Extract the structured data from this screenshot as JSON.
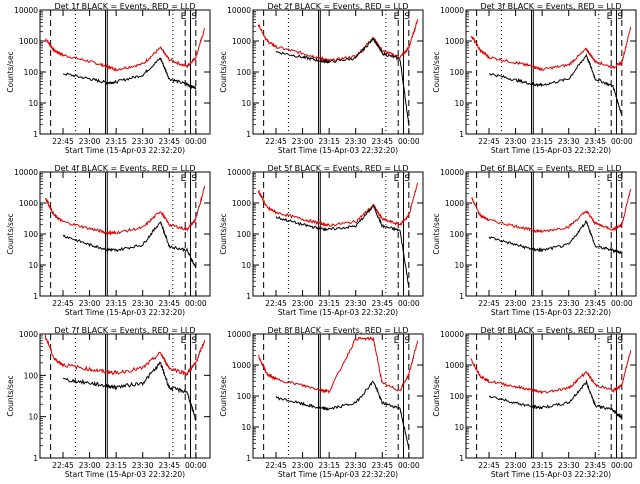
{
  "figure": {
    "xlabel": "Start Time (15-Apr-03 22:32:20)",
    "ylabel": "Counts/sec",
    "x_tick_labels": [
      "22:45",
      "23:00",
      "23:15",
      "23:30",
      "23:45",
      "00:00"
    ],
    "y_tick_labels": [
      "1",
      "10",
      "100",
      "1000",
      "10000"
    ],
    "event_markers": [
      "E",
      "S"
    ]
  },
  "colors": {
    "events": "#000000",
    "lld": "#e00000"
  },
  "chart_data": [
    {
      "type": "line",
      "title": "Det 1f BLACK = Events, RED = LLD",
      "xlabel": "Start Time (15-Apr-03 22:32:20)",
      "ylabel": "Counts/sec",
      "y_scale": "log",
      "ylim": [
        1,
        10000
      ],
      "x": [
        "22:35",
        "22:40",
        "22:45",
        "23:00",
        "23:10",
        "23:15",
        "23:30",
        "23:40",
        "23:45",
        "23:55",
        "00:00",
        "00:05"
      ],
      "series": [
        {
          "name": "BLACK = Events",
          "color": "#000000",
          "start_index": 2,
          "end_index": 10,
          "values": [
            null,
            null,
            90,
            60,
            45,
            48,
            80,
            280,
            60,
            40,
            30,
            null
          ]
        },
        {
          "name": "RED = LLD",
          "color": "#e00000",
          "values": [
            1200,
            500,
            350,
            220,
            150,
            120,
            180,
            600,
            250,
            150,
            300,
            2500
          ]
        }
      ]
    },
    {
      "type": "line",
      "title": "Det 2f BLACK = Events, RED = LLD",
      "xlabel": "Start Time (15-Apr-03 22:32:20)",
      "ylabel": "Counts/sec",
      "y_scale": "log",
      "ylim": [
        1,
        10000
      ],
      "x": [
        "22:35",
        "22:40",
        "22:45",
        "23:00",
        "23:10",
        "23:15",
        "23:30",
        "23:40",
        "23:45",
        "23:55",
        "00:00",
        "00:05"
      ],
      "series": [
        {
          "name": "BLACK = Events",
          "color": "#000000",
          "start_index": 2,
          "end_index": 10,
          "values": [
            null,
            null,
            450,
            300,
            230,
            210,
            280,
            1200,
            400,
            260,
            2,
            null
          ]
        },
        {
          "name": "RED = LLD",
          "color": "#e00000",
          "values": [
            3500,
            1000,
            650,
            400,
            280,
            230,
            320,
            1300,
            480,
            300,
            600,
            5000
          ]
        }
      ]
    },
    {
      "type": "line",
      "title": "Det 3f BLACK = Events, RED = LLD",
      "xlabel": "Start Time (15-Apr-03 22:32:20)",
      "ylabel": "Counts/sec",
      "y_scale": "log",
      "ylim": [
        1,
        10000
      ],
      "x": [
        "22:35",
        "22:40",
        "22:45",
        "23:00",
        "23:10",
        "23:15",
        "23:30",
        "23:40",
        "23:45",
        "23:55",
        "00:00",
        "00:05"
      ],
      "series": [
        {
          "name": "BLACK = Events",
          "color": "#000000",
          "start_index": 2,
          "end_index": 10,
          "values": [
            null,
            null,
            90,
            55,
            40,
            38,
            60,
            350,
            60,
            35,
            4,
            null
          ]
        },
        {
          "name": "RED = LLD",
          "color": "#e00000",
          "values": [
            1500,
            500,
            300,
            200,
            150,
            120,
            170,
            550,
            220,
            140,
            200,
            2800
          ]
        }
      ]
    },
    {
      "type": "line",
      "title": "Det 4f BLACK = Events, RED = LLD",
      "xlabel": "Start Time (15-Apr-03 22:32:20)",
      "ylabel": "Counts/sec",
      "y_scale": "log",
      "ylim": [
        1,
        10000
      ],
      "x": [
        "22:35",
        "22:40",
        "22:45",
        "23:00",
        "23:10",
        "23:15",
        "23:30",
        "23:40",
        "23:45",
        "23:55",
        "00:00",
        "00:05"
      ],
      "series": [
        {
          "name": "BLACK = Events",
          "color": "#000000",
          "start_index": 2,
          "end_index": 10,
          "values": [
            null,
            null,
            90,
            45,
            32,
            30,
            45,
            250,
            40,
            30,
            8,
            null
          ]
        },
        {
          "name": "RED = LLD",
          "color": "#e00000",
          "values": [
            1500,
            400,
            250,
            150,
            110,
            110,
            160,
            550,
            200,
            140,
            300,
            3500
          ]
        }
      ]
    },
    {
      "type": "line",
      "title": "Det 5f BLACK = Events, RED = LLD",
      "xlabel": "Start Time (15-Apr-03 22:32:20)",
      "ylabel": "Counts/sec",
      "y_scale": "log",
      "ylim": [
        1,
        10000
      ],
      "x": [
        "22:35",
        "22:40",
        "22:45",
        "23:00",
        "23:10",
        "23:15",
        "23:30",
        "23:40",
        "23:45",
        "23:55",
        "00:00",
        "00:05"
      ],
      "series": [
        {
          "name": "BLACK = Events",
          "color": "#000000",
          "start_index": 2,
          "end_index": 10,
          "values": [
            null,
            null,
            350,
            200,
            150,
            140,
            180,
            800,
            180,
            130,
            2,
            null
          ]
        },
        {
          "name": "RED = LLD",
          "color": "#e00000",
          "values": [
            2500,
            700,
            500,
            300,
            220,
            190,
            250,
            850,
            300,
            200,
            400,
            4500
          ]
        }
      ]
    },
    {
      "type": "line",
      "title": "Det 6f BLACK = Events, RED = LLD",
      "xlabel": "Start Time (15-Apr-03 22:32:20)",
      "ylabel": "Counts/sec",
      "y_scale": "log",
      "ylim": [
        1,
        10000
      ],
      "x": [
        "22:35",
        "22:40",
        "22:45",
        "23:00",
        "23:10",
        "23:15",
        "23:30",
        "23:40",
        "23:45",
        "23:55",
        "00:00",
        "00:05"
      ],
      "series": [
        {
          "name": "BLACK = Events",
          "color": "#000000",
          "start_index": 2,
          "end_index": 10,
          "values": [
            null,
            null,
            80,
            45,
            32,
            30,
            45,
            260,
            40,
            30,
            25,
            null
          ]
        },
        {
          "name": "RED = LLD",
          "color": "#e00000",
          "values": [
            1500,
            400,
            280,
            180,
            130,
            120,
            170,
            550,
            220,
            140,
            200,
            2800
          ]
        }
      ]
    },
    {
      "type": "line",
      "title": "Det 7f BLACK = Events, RED = LLD",
      "xlabel": "Start Time (15-Apr-03 22:32:20)",
      "ylabel": "Counts/sec",
      "y_scale": "log",
      "ylim": [
        1,
        1000
      ],
      "x": [
        "22:35",
        "22:40",
        "22:45",
        "23:00",
        "23:10",
        "23:15",
        "23:30",
        "23:40",
        "23:45",
        "23:55",
        "00:00",
        "00:05"
      ],
      "series": [
        {
          "name": "BLACK = Events",
          "color": "#000000",
          "start_index": 2,
          "end_index": 10,
          "values": [
            null,
            null,
            80,
            65,
            55,
            52,
            65,
            200,
            50,
            40,
            8,
            null
          ]
        },
        {
          "name": "RED = LLD",
          "color": "#e00000",
          "values": [
            900,
            250,
            180,
            140,
            120,
            115,
            150,
            350,
            150,
            110,
            200,
            700
          ]
        }
      ]
    },
    {
      "type": "line",
      "title": "Det 8f BLACK = Events, RED = LLD",
      "xlabel": "Start Time (15-Apr-03 22:32:20)",
      "ylabel": "Counts/sec",
      "y_scale": "log",
      "ylim": [
        1,
        10000
      ],
      "x": [
        "22:35",
        "22:40",
        "22:45",
        "23:00",
        "23:10",
        "23:15",
        "23:30",
        "23:40",
        "23:45",
        "23:55",
        "00:00",
        "00:05"
      ],
      "series": [
        {
          "name": "BLACK = Events",
          "color": "#000000",
          "start_index": 2,
          "end_index": 10,
          "values": [
            null,
            null,
            90,
            55,
            40,
            38,
            60,
            300,
            60,
            40,
            2,
            null
          ]
        },
        {
          "name": "RED = LLD",
          "color": "#e00000",
          "values": [
            2000,
            500,
            350,
            220,
            160,
            140,
            7000,
            7000,
            250,
            150,
            500,
            6000
          ]
        }
      ]
    },
    {
      "type": "line",
      "title": "Det 9f BLACK = Events, RED = LLD",
      "xlabel": "Start Time (15-Apr-03 22:32:20)",
      "ylabel": "Counts/sec",
      "y_scale": "log",
      "ylim": [
        1,
        10000
      ],
      "x": [
        "22:35",
        "22:40",
        "22:45",
        "23:00",
        "23:10",
        "23:15",
        "23:30",
        "23:40",
        "23:45",
        "23:55",
        "00:00",
        "00:05"
      ],
      "series": [
        {
          "name": "BLACK = Events",
          "color": "#000000",
          "start_index": 2,
          "end_index": 10,
          "values": [
            null,
            null,
            100,
            60,
            45,
            42,
            60,
            280,
            50,
            35,
            20,
            null
          ]
        },
        {
          "name": "RED = LLD",
          "color": "#e00000",
          "values": [
            1500,
            450,
            300,
            200,
            150,
            130,
            180,
            600,
            230,
            150,
            220,
            3000
          ]
        }
      ]
    }
  ]
}
